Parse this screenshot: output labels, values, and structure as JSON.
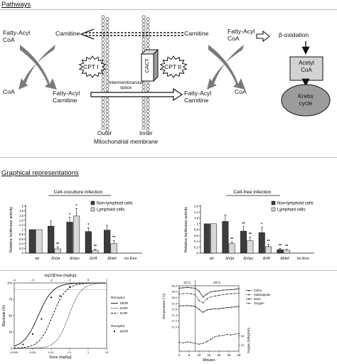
{
  "pathways": {
    "section_title": "Pathways",
    "fatty_acyl_coa_left_1": "Fatty-Acyl",
    "fatty_acyl_coa_left_2": "CoA",
    "coa_left": "CoA",
    "carnitine_left": "Carnitine",
    "fatty_acyl_carnitine_left_1": "Fatty-Acyl",
    "fatty_acyl_carnitine_left_2": "Carnitine",
    "cpt1": "CPT I",
    "cact": "CACT",
    "cpt2": "CPT II",
    "intermembranous_1": "Intermembranous",
    "intermembranous_2": "space",
    "carnitine_right": "Carnitine",
    "fatty_acyl_carnitine_right_1": "Fatty-Acyl",
    "fatty_acyl_carnitine_right_2": "Carnitine",
    "fatty_acyl_coa_right_1": "Fatty-Acyl",
    "fatty_acyl_coa_right_2": "CoA",
    "coa_right": "CoA",
    "beta_oxidation": "β-oxidation",
    "acetyl_coa_1": "Acetyl",
    "acetyl_coa_2": "CoA",
    "krebs_1": "Krebs",
    "krebs_2": "cycle",
    "outer": "Outer",
    "inner": "Inner",
    "membrane_label": "Mitochondrial membrane"
  },
  "graphical": {
    "section_title": "Graphical representations",
    "legend": {
      "non_lymphoid": "Non-lymphoid cells",
      "lymphoid": "Lymphoid cells"
    },
    "colors": {
      "non_lymphoid": "#3c3c3c",
      "lymphoid": "#d8d8d8"
    }
  },
  "chart_data": [
    {
      "type": "bar",
      "title": "Cell-coculture infection",
      "ylabel": "Relative luciferase activity",
      "ylim": [
        0,
        2.0
      ],
      "yticks": [
        "0",
        "0.2",
        "0.4",
        "0.6",
        "0.8",
        "1",
        "1.2",
        "1.4",
        "1.6",
        "1.8",
        "2"
      ],
      "categories": [
        "wt",
        "ΔVpr",
        "ΔVpu",
        "ΔVif",
        "ΔNef",
        "no Env"
      ],
      "series": [
        {
          "name": "Non-lymphoid cells",
          "values": [
            1.0,
            1.15,
            1.32,
            0.92,
            0.98,
            0.0
          ],
          "errors": [
            0.0,
            0.22,
            0.2,
            0.15,
            0.2,
            0.0
          ]
        },
        {
          "name": "Lymphoid cells",
          "values": [
            1.0,
            0.18,
            1.58,
            0.12,
            0.4,
            0.0
          ],
          "errors": [
            0.0,
            0.08,
            0.32,
            0.05,
            0.14,
            0.0
          ]
        }
      ],
      "annotations": [
        {
          "category": "ΔVpr",
          "series": 1,
          "text": "**"
        },
        {
          "category": "ΔVpu",
          "series": 0,
          "text": "*"
        },
        {
          "category": "ΔVpu",
          "series": 1,
          "text": "*"
        },
        {
          "category": "ΔVif",
          "series": 0,
          "text": "*"
        },
        {
          "category": "ΔVif",
          "series": 1,
          "text": "**"
        },
        {
          "category": "ΔNef",
          "series": 1,
          "text": "**"
        }
      ]
    },
    {
      "type": "bar",
      "title": "Cell-free infection",
      "ylabel": "Relative luciferase activity",
      "ylim": [
        0,
        1.6
      ],
      "yticks": [
        "0",
        "0.2",
        "0.4",
        "0.6",
        "0.8",
        "1",
        "1.2",
        "1.4",
        "1.6"
      ],
      "categories": [
        "wt",
        "ΔVpr",
        "ΔVpu",
        "ΔVif",
        "ΔNef",
        "no Env"
      ],
      "series": [
        {
          "name": "Non-lymphoid cells",
          "values": [
            1.0,
            1.08,
            0.75,
            0.7,
            0.12,
            0.0
          ],
          "errors": [
            0.0,
            0.22,
            0.15,
            0.18,
            0.04,
            0.0
          ]
        },
        {
          "name": "Lymphoid cells",
          "values": [
            1.0,
            0.32,
            0.42,
            0.22,
            0.1,
            0.0
          ],
          "errors": [
            0.0,
            0.06,
            0.12,
            0.08,
            0.03,
            0.0
          ]
        }
      ],
      "annotations": [
        {
          "category": "ΔVpr",
          "series": 1,
          "text": "**"
        },
        {
          "category": "ΔVpu",
          "series": 0,
          "text": "**"
        },
        {
          "category": "ΔVpu",
          "series": 1,
          "text": "**"
        },
        {
          "category": "ΔVif",
          "series": 0,
          "text": "*"
        },
        {
          "category": "ΔVif",
          "series": 1,
          "text": "**"
        },
        {
          "category": "ΔNef",
          "series": 0,
          "text": "**"
        },
        {
          "category": "ΔNef",
          "series": 1,
          "text": "**"
        }
      ]
    },
    {
      "type": "line",
      "top_label": "log10[Dose (mg/kg)]",
      "top_ticks": [
        "-4",
        "-3",
        "-2",
        "-1",
        "0",
        "1"
      ],
      "xlabel": "Dose (mg/kg)",
      "x_ticks": [
        "0.0001",
        "0.001",
        "0.01",
        "0.1",
        "1",
        "10"
      ],
      "ylabel": "Blockade (%)",
      "yticks": [
        "0",
        "25",
        "50",
        "75",
        "100"
      ],
      "x_log": true,
      "xlim": [
        0.0001,
        10
      ],
      "ylim": [
        0,
        100
      ],
      "legend_title": "Receptor",
      "series": [
        {
          "name": "MOR",
          "style": "solid",
          "ec50": 0.002,
          "hill": 1.1
        },
        {
          "name": "DOR",
          "style": "dotted",
          "ec50": 0.09,
          "hill": 1.3
        },
        {
          "name": "KOR",
          "style": "dashed",
          "ec50": 0.012,
          "hill": 1.2
        }
      ],
      "scatter_legend_title": "Receptor",
      "scatter": {
        "name": "MOR",
        "x": [
          0.0003,
          0.001,
          0.003,
          0.01,
          0.03,
          0.1
        ],
        "y": [
          6,
          22,
          45,
          78,
          80,
          94
        ]
      },
      "reference_line_y": 90
    },
    {
      "type": "line",
      "xlabel": "Minutes",
      "x_ticks": [
        "0",
        "5",
        "10",
        "15",
        "20",
        "25",
        "30"
      ],
      "xlim": [
        0,
        30
      ],
      "ylabel_top": "Temperature (°C)",
      "ylabel_bottom": "Oxygen (ml/kg/min)",
      "yticks_top": [
        "37.0",
        "37.2",
        "37.4",
        "37.6",
        "37.8",
        "38.0",
        "38.2",
        "38.4"
      ],
      "yticks_bottom": [
        "20",
        "40"
      ],
      "phase_labels": [
        "31°C",
        "20°C"
      ],
      "phase_boundary_x": 8,
      "series": [
        {
          "name": "Colon",
          "x": [
            0,
            2,
            4,
            6,
            8,
            10,
            12,
            14,
            16,
            18,
            20,
            22,
            24,
            26,
            28,
            30
          ],
          "y": [
            38.32,
            38.33,
            38.34,
            38.33,
            38.32,
            38.22,
            38.02,
            38.12,
            38.2,
            38.22,
            38.23,
            38.25,
            38.26,
            38.27,
            38.28,
            38.3
          ]
        },
        {
          "name": "Subscapular",
          "x": [
            0,
            2,
            4,
            6,
            8,
            10,
            12,
            14,
            16,
            18,
            20,
            22,
            24,
            26,
            28,
            30
          ],
          "y": [
            38.12,
            38.13,
            38.14,
            38.13,
            38.1,
            37.9,
            37.82,
            37.96,
            38.02,
            38.05,
            38.08,
            38.1,
            38.12,
            38.13,
            38.14,
            38.15
          ]
        },
        {
          "name": "Brain",
          "x": [
            0,
            2,
            4,
            6,
            8,
            10,
            12,
            14,
            16,
            18,
            20,
            22,
            24,
            26,
            28,
            30
          ],
          "y": [
            37.72,
            37.72,
            37.73,
            37.72,
            37.7,
            37.6,
            37.5,
            37.58,
            37.6,
            37.62,
            37.62,
            37.64,
            37.66,
            37.67,
            37.68,
            37.7
          ]
        },
        {
          "name": "Oxygen",
          "x": [
            0,
            2,
            4,
            6,
            8,
            10,
            12,
            14,
            16,
            18,
            20,
            22,
            24,
            26,
            28,
            30
          ],
          "y": [
            26,
            25,
            27,
            26,
            24,
            22,
            24,
            28,
            33,
            38,
            40,
            41,
            43,
            42,
            44,
            45
          ]
        }
      ]
    }
  ]
}
